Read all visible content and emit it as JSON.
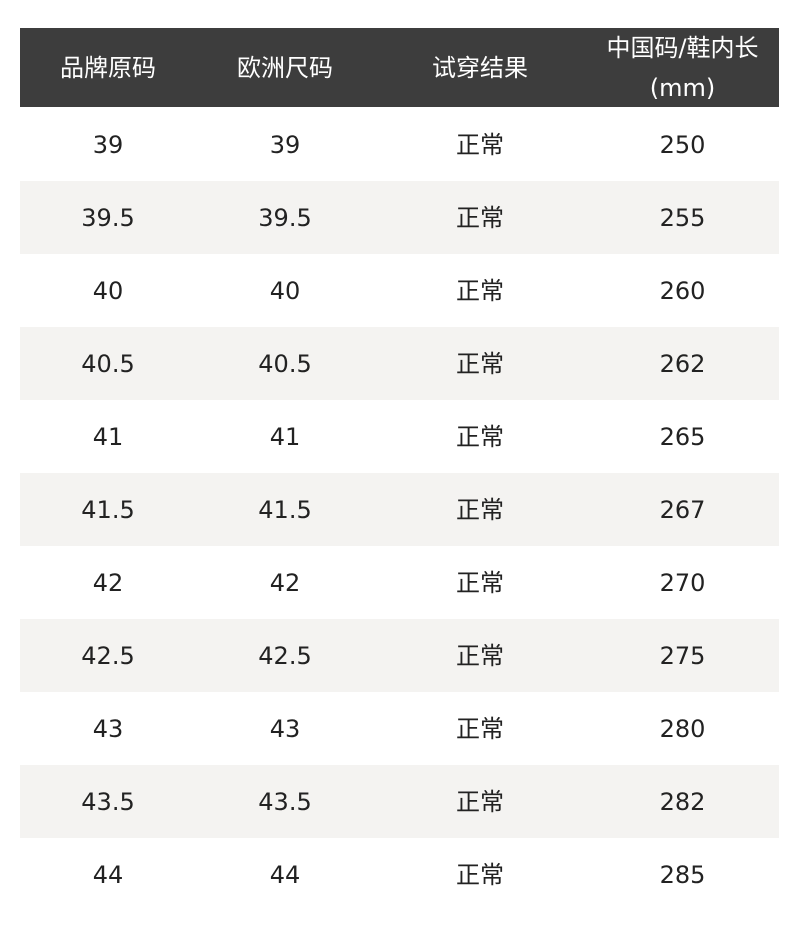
{
  "table": {
    "header": [
      "品牌原码",
      "欧洲尺码",
      "试穿结果",
      "中国码/鞋内长\n(mm)"
    ],
    "rows": [
      [
        "39",
        "39",
        "正常",
        "250"
      ],
      [
        "39.5",
        "39.5",
        "正常",
        "255"
      ],
      [
        "40",
        "40",
        "正常",
        "260"
      ],
      [
        "40.5",
        "40.5",
        "正常",
        "262"
      ],
      [
        "41",
        "41",
        "正常",
        "265"
      ],
      [
        "41.5",
        "41.5",
        "正常",
        "267"
      ],
      [
        "42",
        "42",
        "正常",
        "270"
      ],
      [
        "42.5",
        "42.5",
        "正常",
        "275"
      ],
      [
        "43",
        "43",
        "正常",
        "280"
      ],
      [
        "43.5",
        "43.5",
        "正常",
        "282"
      ],
      [
        "44",
        "44",
        "正常",
        "285"
      ]
    ]
  }
}
